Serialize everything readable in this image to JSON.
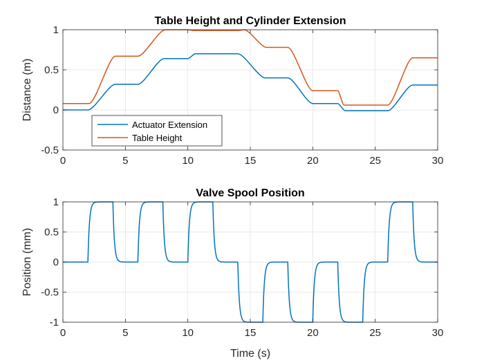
{
  "chart_data": [
    {
      "type": "line",
      "title": "Table Height and Cylinder Extension",
      "xlabel": "",
      "ylabel": "Distance (m)",
      "xlim": [
        0,
        30
      ],
      "ylim": [
        -0.5,
        1
      ],
      "xticks": [
        0,
        5,
        10,
        15,
        20,
        25,
        30
      ],
      "xtick_labels": [
        "0",
        "5",
        "10",
        "15",
        "20",
        "25",
        "30"
      ],
      "yticks": [
        -0.5,
        0,
        0.5,
        1
      ],
      "ytick_labels": [
        "-0.5",
        "0",
        "0.5",
        "1"
      ],
      "grid": true,
      "legend_position": "bottom-left",
      "series": [
        {
          "name": "Actuator Extension",
          "color": "#0072BD",
          "x": [
            0,
            2,
            4.2,
            6,
            8.1,
            10,
            10.6,
            14,
            16.2,
            18,
            20,
            22,
            22.6,
            26,
            28,
            30
          ],
          "y": [
            0,
            0,
            0.32,
            0.32,
            0.64,
            0.64,
            0.7,
            0.7,
            0.4,
            0.4,
            0.08,
            0.08,
            -0.01,
            -0.01,
            0.31,
            0.31
          ]
        },
        {
          "name": "Table Height",
          "color": "#D95319",
          "x": [
            0,
            2.1,
            4.2,
            6,
            8.2,
            10,
            10.5,
            14,
            14.5,
            16.3,
            18,
            20,
            22,
            22.5,
            26,
            28,
            30
          ],
          "y": [
            0.08,
            0.08,
            0.67,
            0.67,
            1.0,
            1.0,
            0.99,
            0.99,
            1.0,
            0.78,
            0.78,
            0.24,
            0.24,
            0.06,
            0.06,
            0.65,
            0.65
          ]
        }
      ]
    },
    {
      "type": "line",
      "title": "Valve Spool Position",
      "xlabel": "Time (s)",
      "ylabel": "Position (mm)",
      "xlim": [
        0,
        30
      ],
      "ylim": [
        -1,
        1
      ],
      "xticks": [
        0,
        5,
        10,
        15,
        20,
        25,
        30
      ],
      "xtick_labels": [
        "0",
        "5",
        "10",
        "15",
        "20",
        "25",
        "30"
      ],
      "yticks": [
        -1,
        -0.5,
        0,
        0.5,
        1
      ],
      "ytick_labels": [
        "-1",
        "-0.5",
        "0",
        "0.5",
        "1"
      ],
      "grid": true,
      "series": [
        {
          "color": "#0072BD",
          "pulses": [
            {
              "start": 2,
              "end": 4,
              "level": 1
            },
            {
              "start": 6,
              "end": 8,
              "level": 1
            },
            {
              "start": 10,
              "end": 12,
              "level": 1
            },
            {
              "start": 14,
              "end": 16,
              "level": -1
            },
            {
              "start": 18,
              "end": 20,
              "level": -1
            },
            {
              "start": 22,
              "end": 24,
              "level": -1
            },
            {
              "start": 26,
              "end": 28,
              "level": 1
            }
          ]
        }
      ]
    }
  ]
}
